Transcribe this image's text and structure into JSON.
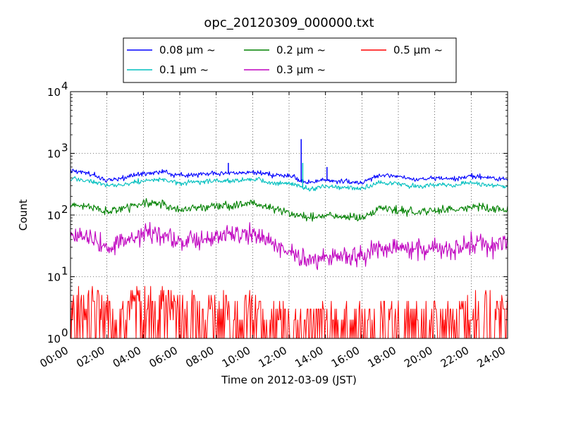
{
  "chart_data": {
    "type": "line",
    "title": "opc_20120309_000000.txt",
    "xlabel": "Time on 2012-03-09 (JST)",
    "ylabel": "Count",
    "xlim": [
      "00:00",
      "24:00"
    ],
    "ylim": [
      1,
      10000
    ],
    "yscale": "log",
    "grid": true,
    "legend_position": "top-center, above plot",
    "x_ticks": [
      "00:00",
      "02:00",
      "04:00",
      "06:00",
      "08:00",
      "10:00",
      "12:00",
      "14:00",
      "16:00",
      "18:00",
      "20:00",
      "22:00",
      "24:00"
    ],
    "y_ticks": [
      {
        "value": 1,
        "mantissa": "10",
        "exponent": "0"
      },
      {
        "value": 10,
        "mantissa": "10",
        "exponent": "1"
      },
      {
        "value": 100,
        "mantissa": "10",
        "exponent": "2"
      },
      {
        "value": 1000,
        "mantissa": "10",
        "exponent": "3"
      },
      {
        "value": 10000,
        "mantissa": "10",
        "exponent": "4"
      }
    ],
    "x": [
      "00:00",
      "01:00",
      "02:00",
      "03:00",
      "04:00",
      "05:00",
      "06:00",
      "07:00",
      "08:00",
      "09:00",
      "10:00",
      "11:00",
      "12:00",
      "13:00",
      "14:00",
      "15:00",
      "16:00",
      "17:00",
      "18:00",
      "19:00",
      "20:00",
      "21:00",
      "22:00",
      "23:00",
      "24:00"
    ],
    "series": [
      {
        "name": "0.08 μm ~",
        "color": "#0000ff",
        "values": [
          530,
          480,
          360,
          400,
          470,
          500,
          440,
          450,
          480,
          480,
          500,
          450,
          430,
          340,
          360,
          350,
          330,
          450,
          420,
          370,
          400,
          380,
          430,
          400,
          380
        ]
      },
      {
        "name": "0.1 μm ~",
        "color": "#00bfbf",
        "values": [
          390,
          360,
          300,
          320,
          360,
          380,
          330,
          340,
          360,
          360,
          380,
          340,
          320,
          270,
          290,
          280,
          270,
          340,
          320,
          290,
          310,
          300,
          330,
          300,
          290
        ]
      },
      {
        "name": "0.2 μm ~",
        "color": "#008000",
        "values": [
          150,
          140,
          110,
          130,
          160,
          150,
          120,
          130,
          140,
          150,
          155,
          130,
          110,
          90,
          100,
          95,
          90,
          130,
          120,
          110,
          120,
          120,
          140,
          130,
          120
        ]
      },
      {
        "name": "0.3 μm ~",
        "color": "#bf00bf",
        "values": [
          50,
          45,
          30,
          38,
          50,
          48,
          38,
          42,
          45,
          48,
          50,
          35,
          25,
          18,
          20,
          22,
          22,
          30,
          30,
          25,
          30,
          28,
          35,
          32,
          35
        ]
      },
      {
        "name": "0.5 μm ~",
        "color": "#ff0000",
        "values": [
          4,
          4,
          3,
          3,
          4,
          4,
          3,
          3,
          3,
          3,
          3,
          2,
          2,
          2,
          2,
          2,
          2,
          2,
          2,
          2,
          2,
          2,
          3,
          3,
          3
        ]
      }
    ],
    "spikes": [
      {
        "series": "0.08 μm ~",
        "time": "12:40",
        "value": 1700
      },
      {
        "series": "0.1 μm ~",
        "time": "12:45",
        "value": 700
      },
      {
        "series": "0.08 μm ~",
        "time": "08:40",
        "value": 700
      },
      {
        "series": "0.08 μm ~",
        "time": "14:05",
        "value": 600
      }
    ]
  }
}
